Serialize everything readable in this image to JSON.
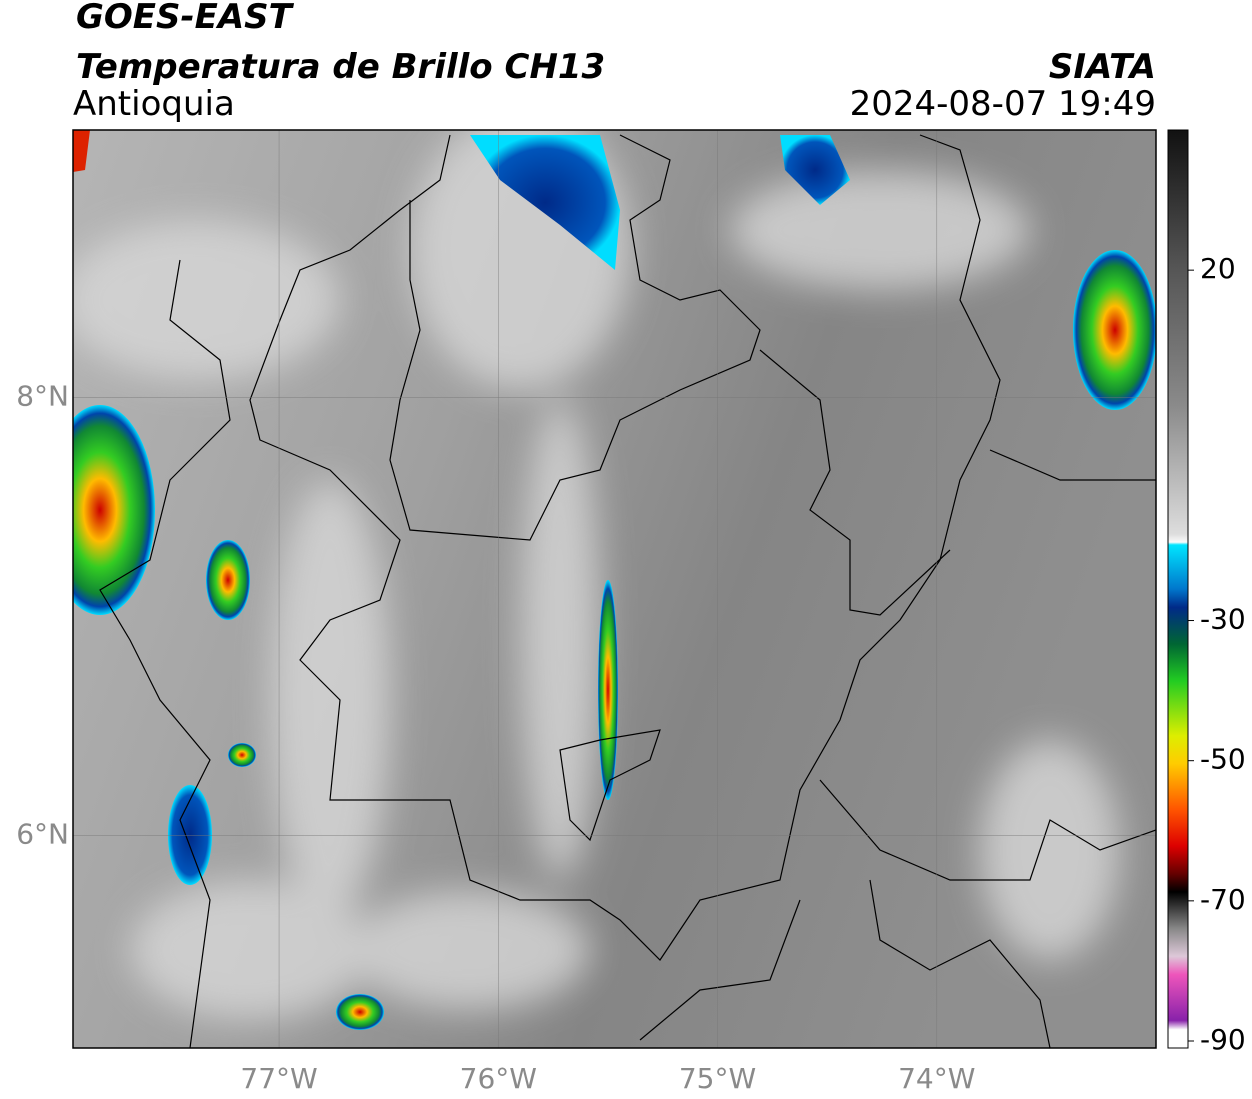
{
  "header": {
    "title": "GOES-EAST",
    "product": "Temperatura de Brillo CH13",
    "region": "Antioquia",
    "agency": "SIATA",
    "timestamp": "2024-08-07 19:49"
  },
  "map": {
    "xlim": [
      -77.94,
      -73.0
    ],
    "ylim": [
      5.03,
      9.22
    ],
    "xticks": [
      {
        "value": -77,
        "label": "77°W"
      },
      {
        "value": -76,
        "label": "76°W"
      },
      {
        "value": -75,
        "label": "75°W"
      },
      {
        "value": -74,
        "label": "74°W"
      }
    ],
    "yticks": [
      {
        "value": 6,
        "label": "6°N"
      },
      {
        "value": 8,
        "label": "8°N"
      }
    ],
    "grid": true
  },
  "colorbar": {
    "lim": [
      -91,
      40
    ],
    "ticks": [
      20,
      -30,
      -50,
      -70,
      -90
    ]
  }
}
